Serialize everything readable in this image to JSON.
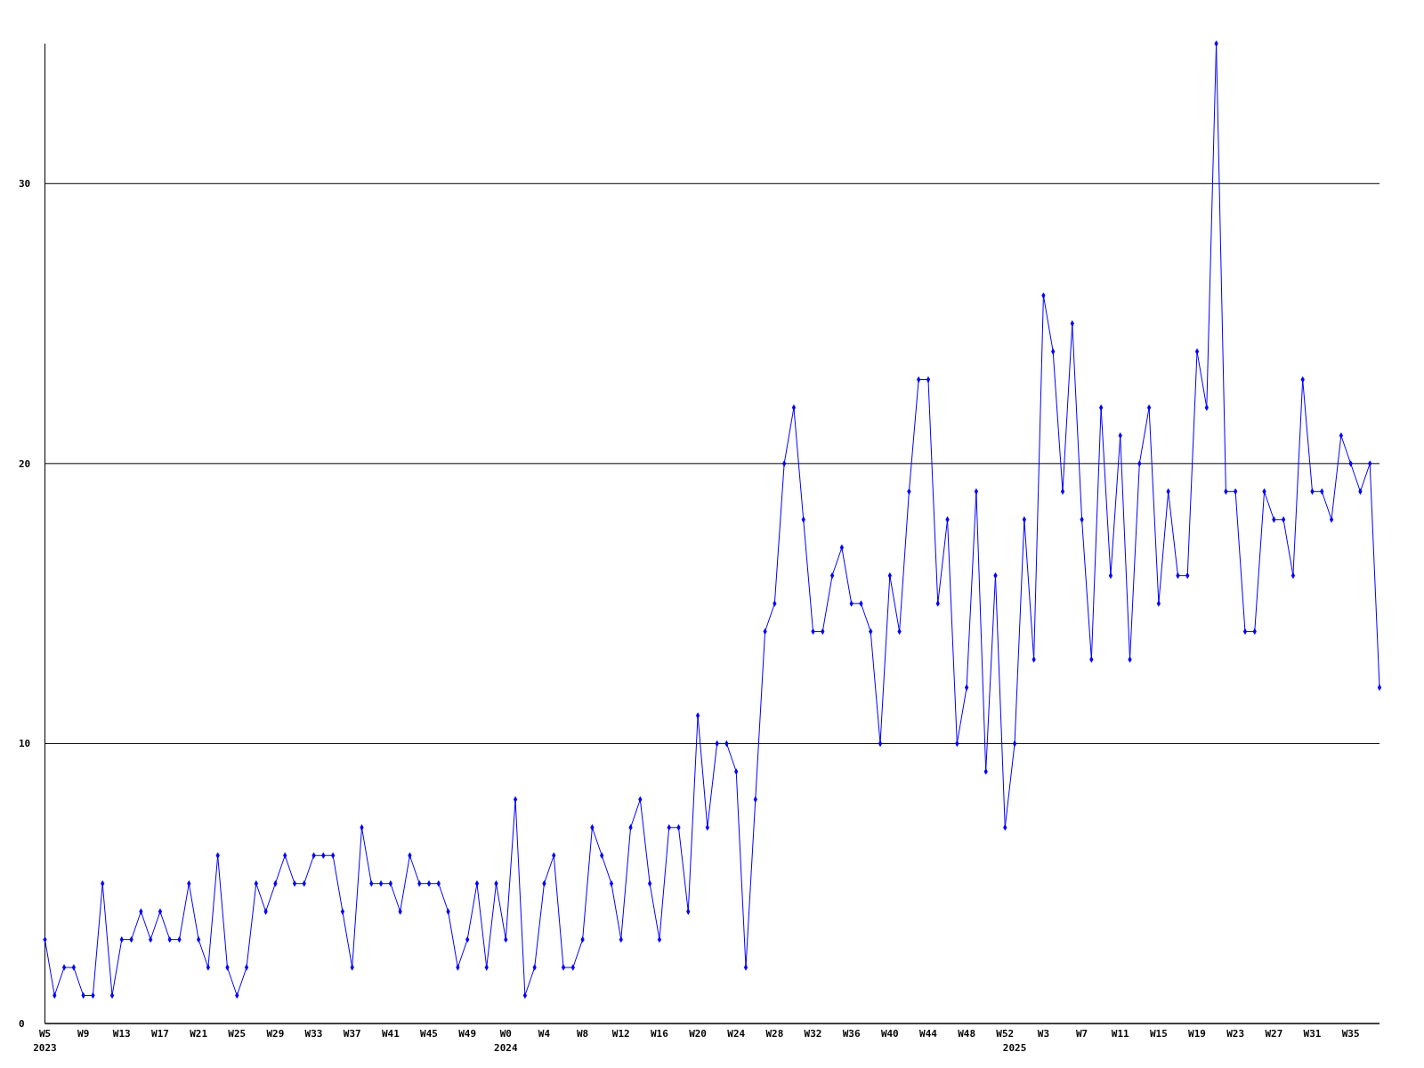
{
  "chart_data": {
    "type": "line",
    "categories": [
      "W5\n2023",
      null,
      null,
      null,
      "W9",
      null,
      null,
      null,
      "W13",
      null,
      null,
      null,
      "W17",
      null,
      null,
      null,
      "W21",
      null,
      null,
      null,
      "W25",
      null,
      null,
      null,
      "W29",
      null,
      null,
      null,
      "W33",
      null,
      null,
      null,
      "W37",
      null,
      null,
      null,
      "W41",
      null,
      null,
      null,
      "W45",
      null,
      null,
      null,
      "W49",
      null,
      null,
      null,
      "W0\n2024",
      null,
      null,
      null,
      "W4",
      null,
      null,
      null,
      "W8",
      null,
      null,
      null,
      "W12",
      null,
      null,
      null,
      "W16",
      null,
      null,
      null,
      "W20",
      null,
      null,
      null,
      "W24",
      null,
      null,
      null,
      "W28",
      null,
      null,
      null,
      "W32",
      null,
      null,
      null,
      "W36",
      null,
      null,
      null,
      "W40",
      null,
      null,
      null,
      "W44",
      null,
      null,
      null,
      "W48",
      null,
      null,
      null,
      "W52",
      "\n2025",
      null,
      null,
      "W3",
      null,
      null,
      null,
      "W7",
      null,
      null,
      null,
      "W11",
      null,
      null,
      null,
      "W15",
      null,
      null,
      null,
      "W19",
      null,
      null,
      null,
      "W23",
      null,
      null,
      null,
      "W27",
      null,
      null,
      null,
      "W31",
      null,
      null,
      null,
      "W35",
      null,
      null,
      null
    ],
    "values": [
      3,
      1,
      2,
      2,
      1,
      1,
      5,
      1,
      3,
      3,
      4,
      3,
      4,
      3,
      3,
      5,
      3,
      2,
      6,
      2,
      1,
      2,
      5,
      4,
      5,
      6,
      5,
      5,
      6,
      6,
      6,
      4,
      2,
      7,
      5,
      5,
      5,
      4,
      6,
      5,
      5,
      5,
      4,
      2,
      3,
      5,
      2,
      5,
      3,
      8,
      1,
      2,
      5,
      6,
      2,
      2,
      3,
      7,
      6,
      5,
      3,
      7,
      8,
      5,
      3,
      7,
      7,
      4,
      11,
      7,
      10,
      10,
      9,
      2,
      8,
      14,
      15,
      20,
      22,
      18,
      14,
      14,
      16,
      17,
      15,
      15,
      14,
      10,
      16,
      14,
      19,
      23,
      23,
      15,
      18,
      10,
      12,
      19,
      9,
      16,
      7,
      10,
      18,
      13,
      26,
      24,
      19,
      25,
      18,
      13,
      22,
      16,
      21,
      13,
      20,
      22,
      15,
      19,
      16,
      16,
      24,
      22,
      35,
      19,
      19,
      14,
      14,
      19,
      18,
      18,
      16,
      23,
      19,
      19,
      18,
      21,
      20,
      19,
      20,
      12
    ],
    "color": "#0000ff",
    "ylim": [
      0,
      35
    ],
    "yticks": [
      0,
      10,
      20,
      30
    ],
    "grid": "y",
    "marker": "diamond"
  }
}
